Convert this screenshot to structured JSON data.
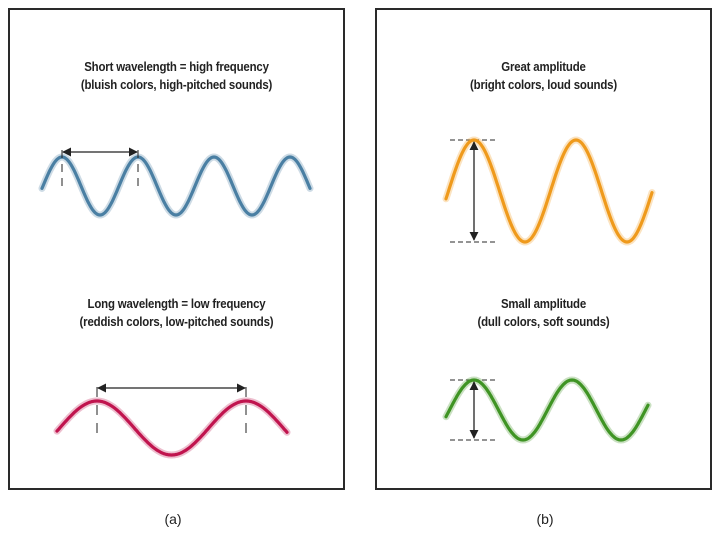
{
  "panel_a": {
    "top_caption": {
      "line1": "Short wavelength = high frequency",
      "line2": "(bluish colors, high-pitched sounds)"
    },
    "bottom_caption": {
      "line1": "Long wavelength = low frequency",
      "line2": "(reddish colors, low-pitched sounds)"
    },
    "label": "(a)"
  },
  "panel_b": {
    "top_caption": {
      "line1": "Great amplitude",
      "line2": "(bright colors, loud sounds)"
    },
    "bottom_caption": {
      "line1": "Small amplitude",
      "line2": "(dull colors, soft sounds)"
    },
    "label": "(b)"
  },
  "colors": {
    "short_wave": "#4a7fa3",
    "long_wave": "#c0144e",
    "great_amplitude_wave": "#ef9a1c",
    "small_amplitude_wave": "#3f9424"
  }
}
